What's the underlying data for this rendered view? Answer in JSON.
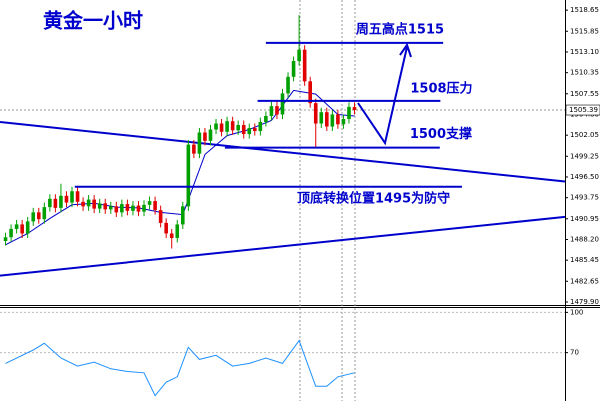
{
  "chart_data": {
    "type": "candlestick",
    "title": "黄金一小时",
    "xlim": [
      -1,
      101
    ],
    "ylim": [
      1479.5,
      1520.0
    ],
    "yticks": [
      1518.65,
      1515.85,
      {
        "value": 1513.1,
        "label": "1513.10"
      },
      1510.35,
      1507.55,
      {
        "value": 1504.8,
        "label": "1504.80"
      },
      1502.05,
      1499.25,
      {
        "value": 1496.5,
        "label": "1496.50"
      },
      1493.75,
      1490.95,
      {
        "value": 1488.2,
        "label": "1488.20"
      },
      1485.45,
      1482.65,
      {
        "value": 1479.9,
        "label": "1479.90"
      }
    ],
    "up_color": "#00a000",
    "down_color": "#e00000",
    "line_color": "#0000cc",
    "last_price": 1505.39,
    "open": [
      1488.0,
      1488.5,
      1489.6,
      1490.2,
      1489.0,
      1490.6,
      1491.8,
      1490.9,
      1492.5,
      1493.6,
      1492.4,
      1494.0,
      1493.1,
      1494.6,
      1493.2,
      1492.6,
      1493.5,
      1492.3,
      1493.0,
      1492.2,
      1492.6,
      1491.8,
      1492.9,
      1492.0,
      1492.7,
      1491.9,
      1492.8,
      1493.3,
      1492.1,
      1490.4,
      1489.0,
      1488.4,
      1490.2,
      1492.6,
      1500.8,
      1499.6,
      1502.4,
      1501.3,
      1502.8,
      1503.6,
      1502.5,
      1503.9,
      1502.7,
      1503.4,
      1502.2,
      1503.0,
      1502.6,
      1503.8,
      1504.6,
      1505.9,
      1504.8,
      1507.6,
      1509.8,
      1511.9,
      1513.4,
      1509.2,
      1506.3,
      1503.6,
      1505.1,
      1503.2,
      1504.8,
      1503.5,
      1504.2,
      1505.8
    ],
    "high": [
      1489.1,
      1490.2,
      1490.8,
      1490.8,
      1491.2,
      1492.4,
      1492.4,
      1493.1,
      1494.2,
      1494.2,
      1495.6,
      1494.6,
      1495.2,
      1495.2,
      1493.8,
      1494.1,
      1494.1,
      1493.6,
      1493.6,
      1493.2,
      1493.2,
      1493.5,
      1493.5,
      1493.3,
      1493.3,
      1493.4,
      1493.9,
      1493.9,
      1492.7,
      1491.0,
      1489.6,
      1490.8,
      1493.2,
      1501.4,
      1501.4,
      1503.0,
      1503.0,
      1503.4,
      1504.2,
      1504.2,
      1504.5,
      1504.5,
      1504.0,
      1504.0,
      1503.6,
      1503.6,
      1504.4,
      1505.2,
      1506.5,
      1506.5,
      1508.2,
      1510.4,
      1512.5,
      1518.0,
      1514.0,
      1509.8,
      1506.9,
      1505.7,
      1505.7,
      1505.4,
      1505.4,
      1504.8,
      1506.4,
      1506.4
    ],
    "low": [
      1487.4,
      1487.9,
      1489.0,
      1488.4,
      1488.4,
      1490.0,
      1490.3,
      1490.3,
      1491.9,
      1491.8,
      1491.8,
      1492.5,
      1492.5,
      1492.6,
      1492.0,
      1492.0,
      1491.7,
      1491.7,
      1491.6,
      1491.6,
      1491.2,
      1491.2,
      1491.4,
      1491.4,
      1491.3,
      1491.3,
      1492.2,
      1491.5,
      1489.8,
      1488.4,
      1487.0,
      1487.8,
      1489.6,
      1492.0,
      1499.0,
      1499.0,
      1500.7,
      1500.7,
      1502.2,
      1501.9,
      1501.9,
      1502.1,
      1502.1,
      1501.6,
      1501.6,
      1502.0,
      1502.0,
      1503.2,
      1504.0,
      1504.2,
      1504.2,
      1507.0,
      1509.2,
      1511.3,
      1508.6,
      1505.7,
      1500.4,
      1503.0,
      1502.6,
      1502.6,
      1502.9,
      1502.9,
      1503.6,
      1504.8
    ],
    "close": [
      1488.5,
      1489.6,
      1490.2,
      1489.0,
      1490.6,
      1491.8,
      1490.9,
      1492.5,
      1493.6,
      1492.4,
      1494.0,
      1493.1,
      1494.6,
      1493.2,
      1492.6,
      1493.5,
      1492.3,
      1493.0,
      1492.2,
      1492.6,
      1491.8,
      1492.9,
      1492.0,
      1492.7,
      1491.9,
      1492.8,
      1493.3,
      1492.1,
      1490.4,
      1489.0,
      1488.4,
      1490.2,
      1492.6,
      1500.8,
      1499.6,
      1502.4,
      1501.3,
      1502.8,
      1503.6,
      1502.5,
      1503.9,
      1502.7,
      1503.4,
      1502.2,
      1503.0,
      1502.6,
      1503.8,
      1504.6,
      1505.9,
      1504.8,
      1507.6,
      1509.8,
      1511.9,
      1513.4,
      1509.2,
      1506.3,
      1503.6,
      1505.1,
      1503.2,
      1504.8,
      1503.5,
      1504.2,
      1505.8,
      1505.39
    ],
    "ma": {
      "x": [
        0,
        4,
        8,
        12,
        16,
        20,
        24,
        28,
        32,
        36,
        40,
        44,
        48,
        52,
        56,
        60,
        63
      ],
      "values": [
        1487.5,
        1489.0,
        1491.0,
        1492.8,
        1493.0,
        1492.5,
        1492.4,
        1491.8,
        1491.5,
        1499.5,
        1502.0,
        1502.8,
        1504.0,
        1508.0,
        1507.5,
        1504.8,
        1504.6
      ]
    },
    "trend_lines": [
      {
        "x": [
          -1,
          101
        ],
        "values": [
          1503.8,
          1495.9
        ]
      },
      {
        "x": [
          -1,
          101
        ],
        "values": [
          1483.4,
          1491.2
        ]
      }
    ],
    "annotations": [
      {
        "text": "周五高点1515",
        "level": 1514.3,
        "x": [
          47,
          79
        ]
      },
      {
        "text": "1508压力",
        "level": 1506.6,
        "x": [
          45.5,
          78.5
        ]
      },
      {
        "text": "1500支撑",
        "level": 1500.4,
        "x": [
          39.6,
          78.4
        ]
      },
      {
        "text": "顶底转换位置1495为防守",
        "level": 1495.2,
        "x": [
          12.5,
          82.4
        ]
      }
    ],
    "indicator": {
      "ylim": [
        34,
        104
      ],
      "yticks": [
        100,
        70
      ],
      "x": [
        0,
        5,
        7,
        10,
        13,
        16,
        19,
        22,
        25,
        27,
        29,
        31,
        33,
        35,
        38,
        41,
        44,
        47,
        50,
        53,
        56,
        58,
        60,
        63
      ],
      "values": [
        62,
        72,
        77,
        66,
        60,
        63,
        58,
        56,
        55,
        38,
        48,
        52,
        74,
        65,
        68,
        60,
        62,
        66,
        62,
        79,
        45,
        45,
        52,
        55
      ]
    }
  }
}
